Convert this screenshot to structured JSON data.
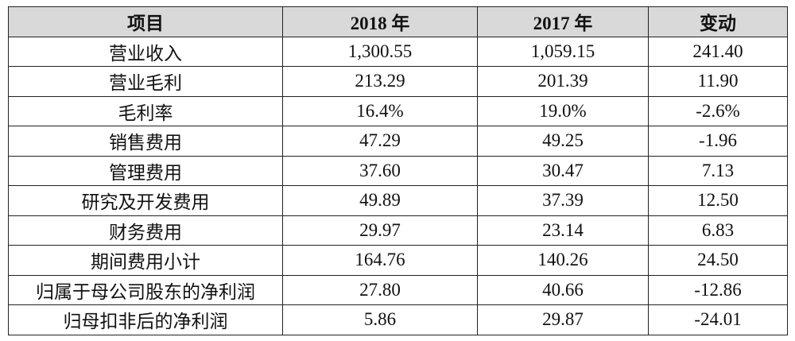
{
  "table": {
    "header": [
      "项目",
      "2018 年",
      "2017 年",
      "变动"
    ],
    "rows": [
      [
        "营业收入",
        "1,300.55",
        "1,059.15",
        "241.40"
      ],
      [
        "营业毛利",
        "213.29",
        "201.39",
        "11.90"
      ],
      [
        "毛利率",
        "16.4%",
        "19.0%",
        "-2.6%"
      ],
      [
        "销售费用",
        "47.29",
        "49.25",
        "-1.96"
      ],
      [
        "管理费用",
        "37.60",
        "30.47",
        "7.13"
      ],
      [
        "研究及开发费用",
        "49.89",
        "37.39",
        "12.50"
      ],
      [
        "财务费用",
        "29.97",
        "23.14",
        "6.83"
      ],
      [
        "期间费用小计",
        "164.76",
        "140.26",
        "24.50"
      ],
      [
        "归属于母公司股东的净利润",
        "27.80",
        "40.66",
        "-12.86"
      ],
      [
        "归母扣非后的净利润",
        "5.86",
        "29.87",
        "-24.01"
      ]
    ]
  }
}
